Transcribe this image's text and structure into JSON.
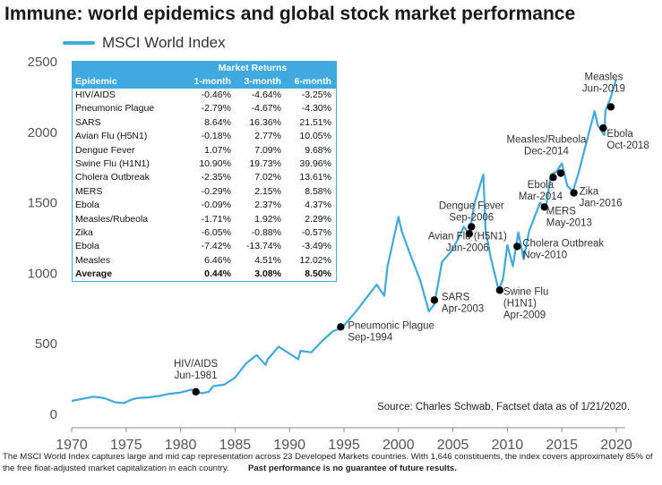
{
  "title": "Immune: world epidemics and global stock market performance",
  "legend_label": "MSCI World Index",
  "colors": {
    "line": "#3fa9e0",
    "marker": "#000000",
    "table_header": "#3fa9e0"
  },
  "table": {
    "group_header": "Market Returns",
    "columns": [
      "Epidemic",
      "1-month",
      "3-month",
      "6-month"
    ],
    "rows": [
      [
        "HIV/AIDS",
        "-0.46%",
        "-4.64%",
        "-3.25%"
      ],
      [
        "Pneumonic Plague",
        "-2.79%",
        "-4.67%",
        "-4.30%"
      ],
      [
        "SARS",
        "8.64%",
        "16.36%",
        "21.51%"
      ],
      [
        "Avian Flu (H5N1)",
        "-0.18%",
        "2.77%",
        "10.05%"
      ],
      [
        "Dengue Fever",
        "1.07%",
        "7.09%",
        "9.68%"
      ],
      [
        "Swine Flu (H1N1)",
        "10.90%",
        "19.73%",
        "39.96%"
      ],
      [
        "Cholera Outbreak",
        "-2.35%",
        "7.02%",
        "13.61%"
      ],
      [
        "MERS",
        "-0.29%",
        "2.15%",
        "8.58%"
      ],
      [
        "Ebola",
        "-0.09%",
        "2.37%",
        "4.37%"
      ],
      [
        "Measles/Rubeola",
        "-1.71%",
        "1.92%",
        "2.29%"
      ],
      [
        "Zika",
        "-6.05%",
        "-0.88%",
        "-0.57%"
      ],
      [
        "Ebola",
        "-7.42%",
        "-13.74%",
        "-3.49%"
      ],
      [
        "Measles",
        "6.46%",
        "4.51%",
        "12.02%"
      ]
    ],
    "average": [
      "Average",
      "0.44%",
      "3.08%",
      "8.50%"
    ]
  },
  "source": "Source: Charles Schwab, Factset data as of 1/21/2020.",
  "footnote_regular": "The MSCI World Index captures large and mid cap representation across 23 Developed Markets countries. With 1,646 constituents, the index covers approximately 85% of the free float-adjusted market capitalization in each country.",
  "footnote_bold": "Past performance is no guarantee of future results.",
  "chart_data": {
    "type": "line",
    "xlim": [
      1970,
      2020
    ],
    "ylim": [
      0,
      2500
    ],
    "xticks": [
      "1970",
      "1975",
      "1980",
      "1985",
      "1990",
      "1995",
      "2000",
      "2005",
      "2010",
      "2015",
      "2020"
    ],
    "yticks": [
      "0",
      "500",
      "1000",
      "1500",
      "2000",
      "2500"
    ],
    "grid": false,
    "legend_position": "top-left",
    "series": [
      {
        "name": "MSCI World Index",
        "x": [
          1970,
          1971,
          1972,
          1973,
          1974,
          1974.8,
          1975.5,
          1976,
          1977,
          1978,
          1979,
          1980,
          1981,
          1981.5,
          1982,
          1982.6,
          1983,
          1984,
          1985,
          1986,
          1987,
          1987.8,
          1988,
          1989,
          1990,
          1990.8,
          1991,
          1992,
          1993,
          1994,
          1994.7,
          1995,
          1996,
          1997,
          1998,
          1998.7,
          1999,
          2000,
          2000.3,
          2001,
          2002,
          2002.8,
          2003.3,
          2004,
          2005,
          2006,
          2006.5,
          2007,
          2007.8,
          2008,
          2008.5,
          2009.2,
          2009.6,
          2010,
          2010.5,
          2011,
          2011.5,
          2012,
          2013,
          2013.5,
          2014,
          2014.5,
          2015,
          2015.5,
          2016,
          2016.5,
          2017,
          2018,
          2018.3,
          2018.9,
          2019,
          2019.5,
          2020
        ],
        "values": [
          95,
          110,
          125,
          115,
          85,
          80,
          105,
          115,
          120,
          130,
          145,
          155,
          175,
          160,
          150,
          160,
          200,
          210,
          260,
          360,
          420,
          350,
          390,
          480,
          430,
          390,
          450,
          440,
          520,
          590,
          610,
          630,
          720,
          820,
          920,
          840,
          1050,
          1400,
          1300,
          1150,
          950,
          730,
          780,
          1080,
          1170,
          1330,
          1280,
          1500,
          1700,
          1300,
          1100,
          880,
          960,
          1200,
          1050,
          1290,
          1100,
          1300,
          1500,
          1450,
          1700,
          1720,
          1780,
          1620,
          1580,
          1700,
          1850,
          2150,
          2050,
          1980,
          2150,
          2250,
          2380
        ]
      }
    ],
    "annotations": [
      {
        "label": "HIV/AIDS\nJun-1981",
        "x": 1981.4,
        "y": 160
      },
      {
        "label": "Pneumonic Plague\nSep-1994",
        "x": 1994.7,
        "y": 620
      },
      {
        "label": "SARS\nApr-2003",
        "x": 2003.3,
        "y": 810
      },
      {
        "label": "Avian Flu (H5N1)\nJun-2006",
        "x": 2006.5,
        "y": 1280
      },
      {
        "label": "Dengue Fever\nSep-2006",
        "x": 2006.7,
        "y": 1330
      },
      {
        "label": "Swine Flu\n(H1N1)\nApr-2009",
        "x": 2009.3,
        "y": 880
      },
      {
        "label": "Cholera Outbreak\nNov-2010",
        "x": 2010.9,
        "y": 1190
      },
      {
        "label": "MERS\nMay-2013",
        "x": 2013.4,
        "y": 1470
      },
      {
        "label": "Ebola\nMar-2014",
        "x": 2014.2,
        "y": 1680
      },
      {
        "label": "Measles/Rubeola\nDec-2014",
        "x": 2014.9,
        "y": 1710
      },
      {
        "label": "Zika\nJan-2016",
        "x": 2016.1,
        "y": 1570
      },
      {
        "label": "Ebola\nOct-2018",
        "x": 2018.8,
        "y": 2030
      },
      {
        "label": "Measles\nJun-2019",
        "x": 2019.5,
        "y": 2180
      }
    ]
  }
}
